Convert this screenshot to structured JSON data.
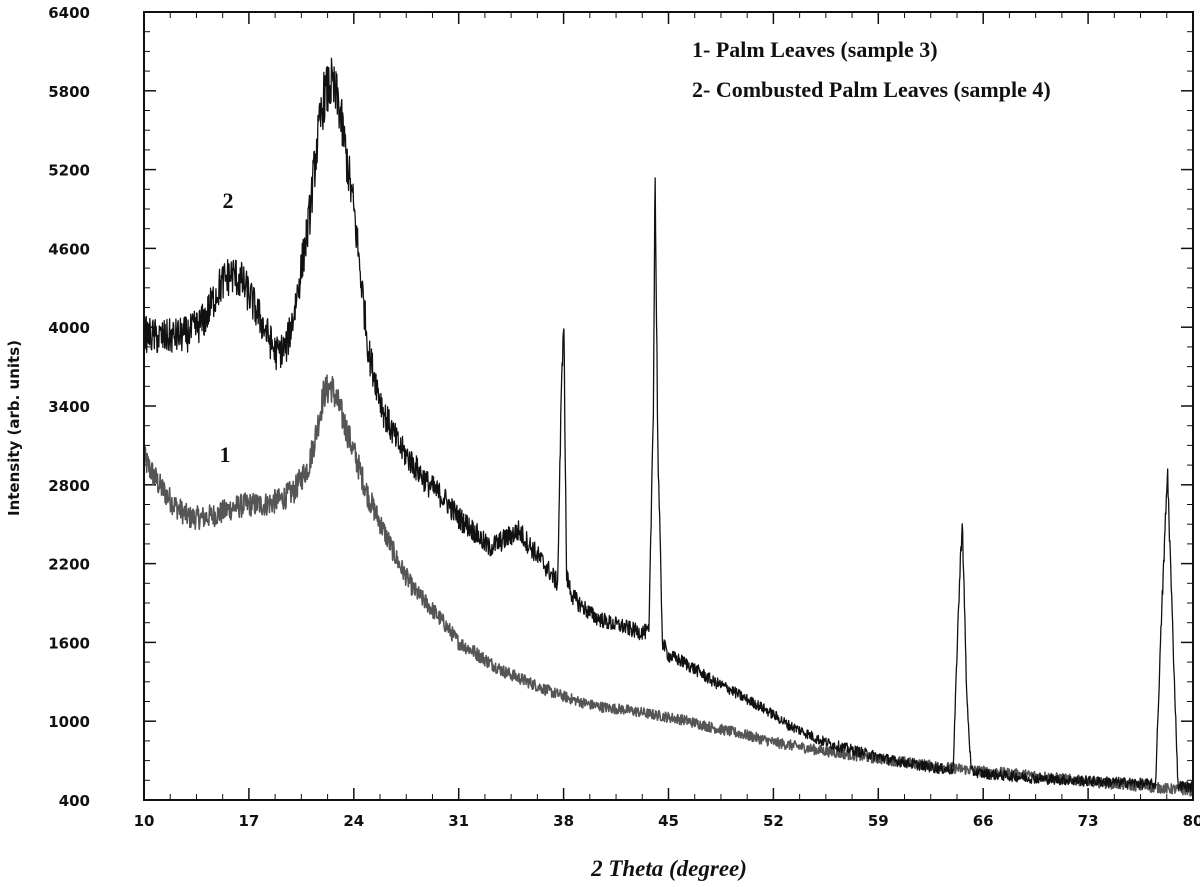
{
  "chart_data": {
    "type": "line",
    "title": "",
    "xlabel": "2 Theta (degree)",
    "ylabel": "Intensity (arb. units)",
    "xlim": [
      10,
      80
    ],
    "ylim": [
      400,
      6400
    ],
    "x_ticks": [
      10,
      17,
      24,
      31,
      38,
      45,
      52,
      59,
      66,
      73,
      80
    ],
    "y_ticks": [
      400,
      1000,
      1600,
      2200,
      2800,
      3400,
      4000,
      4600,
      5200,
      5800,
      6400
    ],
    "grid": false,
    "legend_position": "top-right",
    "legend": [
      "1- Palm Leaves (sample 3)",
      "2- Combusted Palm Leaves (sample 4)"
    ],
    "series": [
      {
        "name": "1- Palm Leaves (sample 3)",
        "curve_label": "1",
        "color": "#555555",
        "x": [
          10,
          11,
          12,
          13,
          14,
          15,
          16,
          17,
          18,
          19,
          20,
          21,
          21.5,
          22,
          22.5,
          23,
          24,
          25,
          26,
          27,
          28,
          29,
          30,
          31,
          32,
          33,
          34,
          35,
          36,
          37,
          38,
          39,
          40,
          41,
          42,
          44,
          46,
          48,
          50,
          52,
          55,
          58,
          60,
          62,
          65,
          68,
          70,
          73,
          75,
          78,
          80
        ],
        "y": [
          3000,
          2800,
          2650,
          2550,
          2550,
          2580,
          2630,
          2650,
          2650,
          2680,
          2750,
          2950,
          3200,
          3500,
          3550,
          3400,
          3050,
          2700,
          2450,
          2200,
          2000,
          1880,
          1750,
          1600,
          1530,
          1450,
          1380,
          1330,
          1280,
          1230,
          1190,
          1150,
          1120,
          1100,
          1090,
          1050,
          1010,
          950,
          900,
          840,
          780,
          730,
          700,
          670,
          630,
          600,
          580,
          540,
          520,
          490,
          470
        ]
      },
      {
        "name": "2- Combusted Palm Leaves (sample 4)",
        "curve_label": "2",
        "color": "#111111",
        "x": [
          10,
          11,
          12,
          13,
          14,
          15,
          15.5,
          16,
          16.5,
          17,
          18,
          18.8,
          19.5,
          20,
          21,
          21.5,
          22,
          22.5,
          23,
          24,
          25,
          26,
          27,
          28,
          29,
          30,
          31,
          32,
          33,
          34,
          35,
          36,
          37,
          37.6,
          37.8,
          38,
          38.2,
          38.6,
          39,
          40,
          41,
          42,
          43,
          43.7,
          44,
          44.1,
          44.3,
          44.6,
          45,
          46,
          47,
          48,
          49,
          50,
          51,
          52,
          53,
          54,
          55,
          56,
          57,
          58,
          59,
          60,
          61,
          62,
          63,
          64,
          64.3,
          64.6,
          64.9,
          65.2,
          66,
          68,
          70,
          72,
          74,
          76,
          77.5,
          77.9,
          78.3,
          78.7,
          79,
          80
        ],
        "y": [
          3950,
          3920,
          3930,
          3950,
          4050,
          4300,
          4380,
          4400,
          4350,
          4250,
          4000,
          3800,
          3850,
          4100,
          4800,
          5350,
          5750,
          5850,
          5700,
          4900,
          3800,
          3350,
          3100,
          2950,
          2800,
          2700,
          2550,
          2450,
          2320,
          2380,
          2450,
          2300,
          2150,
          2050,
          3200,
          4150,
          2100,
          1950,
          1900,
          1800,
          1750,
          1720,
          1680,
          1680,
          3500,
          5200,
          3000,
          1600,
          1500,
          1450,
          1380,
          1300,
          1250,
          1180,
          1120,
          1050,
          970,
          920,
          860,
          820,
          790,
          760,
          730,
          700,
          680,
          660,
          640,
          630,
          1700,
          2550,
          1200,
          620,
          600,
          580,
          560,
          550,
          540,
          530,
          520,
          1800,
          2900,
          1500,
          510,
          500
        ]
      }
    ]
  }
}
